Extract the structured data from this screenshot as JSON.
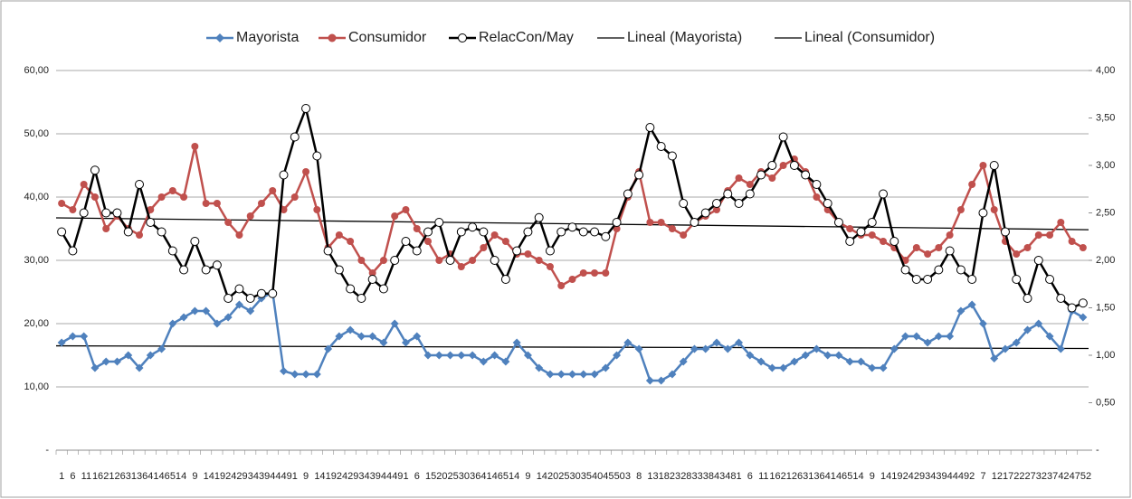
{
  "chart_data": {
    "type": "line",
    "categories": [
      "1",
      "6",
      "11",
      "16",
      "21",
      "26",
      "31",
      "36",
      "41",
      "46",
      "51",
      "4",
      "9",
      "14",
      "19",
      "24",
      "29",
      "34",
      "39",
      "44",
      "49",
      "1",
      "9",
      "14",
      "19",
      "24",
      "29",
      "34",
      "39",
      "44",
      "49",
      "1",
      "6",
      "15",
      "20",
      "25",
      "30",
      "36",
      "41",
      "46",
      "51",
      "4",
      "9",
      "14",
      "20",
      "25",
      "30",
      "35",
      "40",
      "45",
      "50",
      "3",
      "8",
      "13",
      "18",
      "23",
      "28",
      "33",
      "38",
      "43",
      "48",
      "1",
      "6",
      "11",
      "16",
      "21",
      "26",
      "31",
      "36",
      "41",
      "46",
      "51",
      "4",
      "9",
      "14",
      "19",
      "24",
      "29",
      "34",
      "39",
      "44",
      "49",
      "2",
      "7",
      "12",
      "17",
      "22",
      "27",
      "32",
      "37",
      "42",
      "47",
      "52"
    ],
    "series": [
      {
        "name": "Mayorista",
        "color": "#4f81bd",
        "marker": "diamond",
        "axis": "y",
        "values": [
          17,
          18,
          18,
          13,
          14,
          14,
          15,
          13,
          15,
          16,
          20,
          21,
          22,
          22,
          20,
          21,
          23,
          22,
          24,
          25,
          12.5,
          12,
          12,
          12,
          16,
          18,
          19,
          18,
          18,
          17,
          20,
          17,
          18,
          15,
          15,
          15,
          15,
          15,
          14,
          15,
          14,
          17,
          15,
          13,
          12,
          12,
          12,
          12,
          12,
          13,
          15,
          17,
          16,
          11,
          11,
          12,
          14,
          16,
          16,
          17,
          16,
          17,
          15,
          14,
          13,
          13,
          14,
          15,
          16,
          15,
          15,
          14,
          14,
          13,
          13,
          16,
          18,
          18,
          17,
          18,
          18,
          22,
          23,
          20,
          14.5,
          16,
          17,
          19,
          20,
          18,
          16,
          22,
          21
        ]
      },
      {
        "name": "Consumidor",
        "color": "#c0504d",
        "marker": "circle",
        "axis": "y",
        "values": [
          39,
          38,
          42,
          40,
          35,
          37,
          35,
          34,
          38,
          40,
          41,
          40,
          48,
          39,
          39,
          36,
          34,
          37,
          39,
          41,
          38,
          40,
          44,
          38,
          32,
          34,
          33,
          30,
          28,
          30,
          37,
          38,
          35,
          33,
          30,
          31,
          29,
          30,
          32,
          34,
          33,
          31,
          31,
          30,
          29,
          26,
          27,
          28,
          28,
          28,
          35,
          40,
          44,
          36,
          36,
          35,
          34,
          36,
          37,
          38,
          41,
          43,
          42,
          44,
          43,
          45,
          46,
          44,
          40,
          38,
          36,
          35,
          34,
          34,
          33,
          32,
          30,
          32,
          31,
          32,
          34,
          38,
          42,
          45,
          38,
          33,
          31,
          32,
          34,
          34,
          36,
          33,
          32
        ]
      },
      {
        "name": "RelacCon/May",
        "color": "#000000",
        "marker": "open-circle",
        "axis": "y2",
        "values": [
          2.3,
          2.1,
          2.5,
          2.95,
          2.5,
          2.5,
          2.3,
          2.8,
          2.4,
          2.3,
          2.1,
          1.9,
          2.2,
          1.9,
          1.95,
          1.6,
          1.7,
          1.6,
          1.65,
          1.65,
          2.9,
          3.3,
          3.6,
          3.1,
          2.1,
          1.9,
          1.7,
          1.6,
          1.8,
          1.7,
          2.0,
          2.2,
          2.1,
          2.3,
          2.4,
          2.0,
          2.3,
          2.35,
          2.3,
          2.0,
          1.8,
          2.1,
          2.3,
          2.45,
          2.1,
          2.3,
          2.35,
          2.3,
          2.3,
          2.25,
          2.4,
          2.7,
          2.9,
          3.4,
          3.2,
          3.1,
          2.6,
          2.4,
          2.5,
          2.6,
          2.7,
          2.6,
          2.7,
          2.9,
          3.0,
          3.3,
          3.0,
          2.9,
          2.8,
          2.6,
          2.4,
          2.2,
          2.3,
          2.4,
          2.7,
          2.2,
          1.9,
          1.8,
          1.8,
          1.9,
          2.1,
          1.9,
          1.8,
          2.5,
          3.0,
          2.3,
          1.8,
          1.6,
          2.0,
          1.8,
          1.6,
          1.5,
          1.55
        ]
      }
    ],
    "trendlines": [
      {
        "name": "Lineal (Mayorista)",
        "of": 0,
        "color": "#000000"
      },
      {
        "name": "Lineal (Consumidor)",
        "of": 1,
        "color": "#000000"
      }
    ],
    "ylim": [
      0,
      60
    ],
    "yticks": [
      {
        "value": 0,
        "label": "-"
      },
      {
        "value": 10,
        "label": "10,00"
      },
      {
        "value": 20,
        "label": "20,00"
      },
      {
        "value": 30,
        "label": "30,00"
      },
      {
        "value": 40,
        "label": "40,00"
      },
      {
        "value": 50,
        "label": "50,00"
      },
      {
        "value": 60,
        "label": "60,00"
      }
    ],
    "y2lim": [
      0,
      4
    ],
    "y2ticks": [
      {
        "value": 0,
        "label": "-"
      },
      {
        "value": 0.5,
        "label": "0,50"
      },
      {
        "value": 1,
        "label": "1,00"
      },
      {
        "value": 1.5,
        "label": "1,50"
      },
      {
        "value": 2,
        "label": "2,00"
      },
      {
        "value": 2.5,
        "label": "2,50"
      },
      {
        "value": 3,
        "label": "3,00"
      },
      {
        "value": 3.5,
        "label": "3,50"
      },
      {
        "value": 4,
        "label": "4,00"
      }
    ],
    "grid": true,
    "legend": "top"
  }
}
